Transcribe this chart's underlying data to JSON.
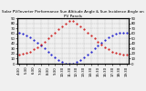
{
  "title": "Solar PV/Inverter Performance Sun Altitude Angle & Sun Incidence Angle on PV Panels",
  "x_ticks": [
    "4:30",
    "5:30",
    "6:30",
    "7:30",
    "8:30",
    "9:30",
    "10:30",
    "11:30",
    "12:30",
    "13:30",
    "14:30",
    "15:30",
    "16:30",
    "17:30",
    "18:30",
    "19:30"
  ],
  "ylim": [
    0,
    90
  ],
  "yticks": [
    0,
    10,
    20,
    30,
    40,
    50,
    60,
    70,
    80,
    90
  ],
  "blue_x": [
    4.5,
    5.0,
    5.5,
    6.0,
    6.5,
    7.0,
    7.5,
    8.0,
    8.5,
    9.0,
    9.5,
    10.0,
    10.5,
    11.0,
    11.5,
    12.0,
    12.5,
    13.0,
    13.5,
    14.0,
    14.5,
    15.0,
    15.5,
    16.0,
    16.5,
    17.0,
    17.5,
    18.0,
    18.5,
    19.0,
    19.5
  ],
  "blue_y": [
    62,
    59,
    56,
    52,
    47,
    42,
    36,
    30,
    24,
    18,
    12,
    7,
    3,
    0,
    0,
    0,
    3,
    7,
    12,
    18,
    24,
    30,
    36,
    42,
    47,
    52,
    56,
    59,
    61,
    62,
    62
  ],
  "red_x": [
    4.5,
    5.0,
    5.5,
    6.0,
    6.5,
    7.0,
    7.5,
    8.0,
    8.5,
    9.0,
    9.5,
    10.0,
    10.5,
    11.0,
    11.5,
    12.0,
    12.5,
    13.0,
    13.5,
    14.0,
    14.5,
    15.0,
    15.5,
    16.0,
    16.5,
    17.0,
    17.5,
    18.0,
    18.5,
    19.0,
    19.5
  ],
  "red_y": [
    18,
    19,
    21,
    24,
    28,
    33,
    38,
    44,
    50,
    56,
    62,
    68,
    74,
    80,
    85,
    85,
    80,
    74,
    68,
    62,
    56,
    50,
    44,
    38,
    33,
    28,
    24,
    21,
    19,
    18,
    18
  ],
  "blue_color": "#0000cc",
  "red_color": "#cc0000",
  "bg_color": "#f0f0f0",
  "grid_color": "#b0b0b0",
  "title_fontsize": 3.0,
  "tick_fontsize": 2.8,
  "marker_size": 1.0
}
